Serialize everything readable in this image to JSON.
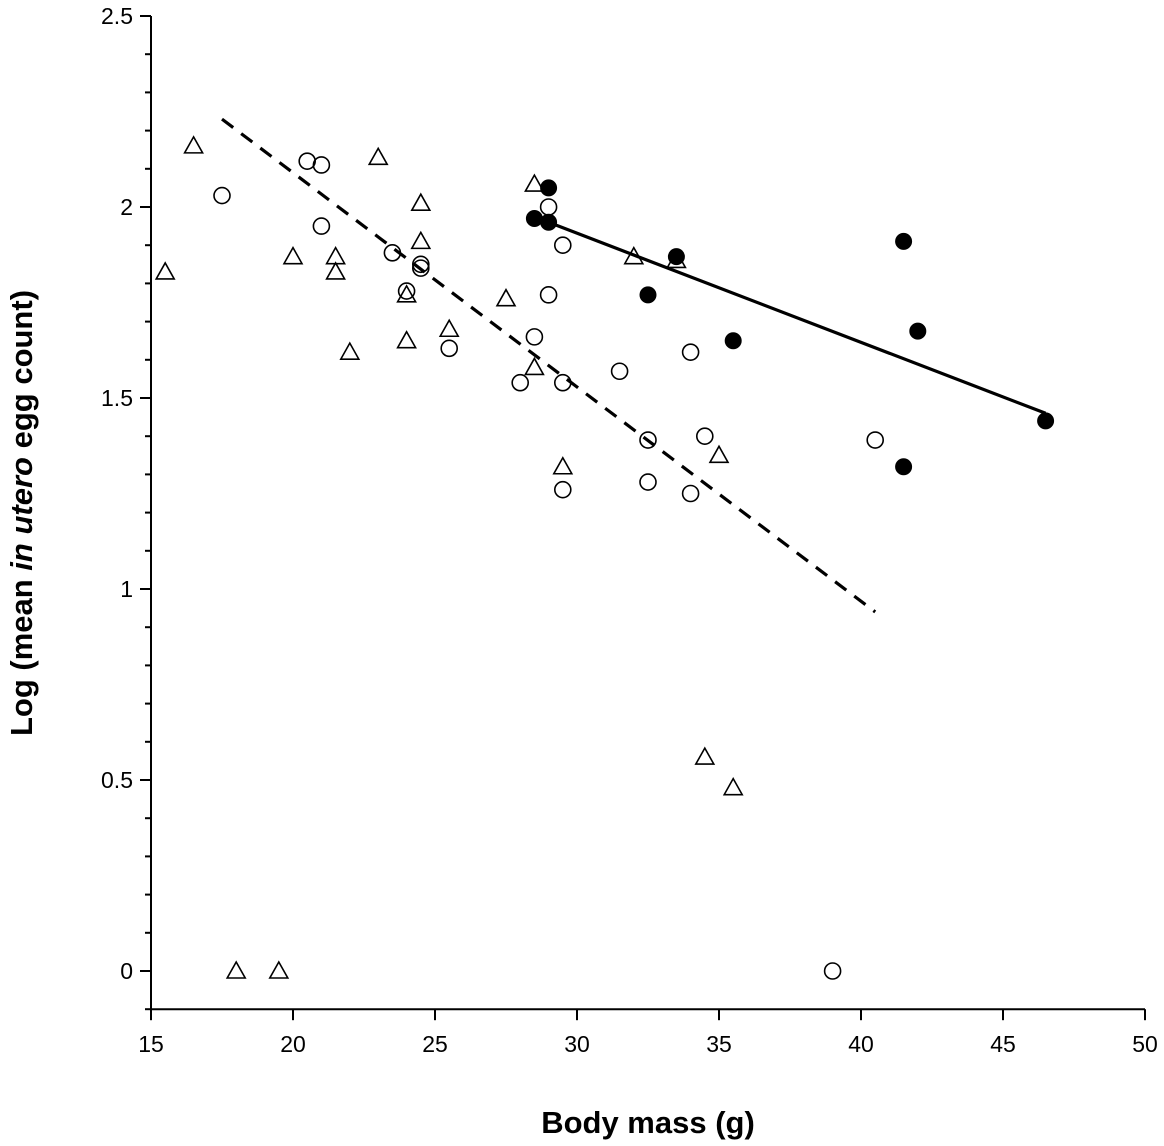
{
  "chart_data": {
    "type": "scatter",
    "xlabel": "Body mass (g)",
    "ylabel_parts": [
      "Log (mean ",
      "in utero",
      " egg count)"
    ],
    "xlim": [
      15,
      50
    ],
    "ylim": [
      -0.1,
      2.5
    ],
    "xticks": [
      15,
      20,
      25,
      30,
      35,
      40,
      45,
      50
    ],
    "yticks": [
      0,
      0.5,
      1,
      1.5,
      2,
      2.5
    ],
    "ytick_labels": [
      "0",
      "0.5",
      "1",
      "1.5",
      "2",
      "2.5"
    ],
    "y_minor_step": 0.1,
    "grid": false,
    "series": [
      {
        "marker": "open-triangle",
        "points": [
          [
            15.5,
            1.83
          ],
          [
            16.5,
            2.16
          ],
          [
            18.0,
            0
          ],
          [
            19.5,
            0
          ],
          [
            20.0,
            1.87
          ],
          [
            21.5,
            1.87
          ],
          [
            21.5,
            1.83
          ],
          [
            22.0,
            1.62
          ],
          [
            23.0,
            2.13
          ],
          [
            24.0,
            1.77
          ],
          [
            24.0,
            1.65
          ],
          [
            24.5,
            2.01
          ],
          [
            24.5,
            1.91
          ],
          [
            25.5,
            1.68
          ],
          [
            27.5,
            1.76
          ],
          [
            28.5,
            2.06
          ],
          [
            28.5,
            1.58
          ],
          [
            29.5,
            1.32
          ],
          [
            32.0,
            1.87
          ],
          [
            33.5,
            1.86
          ],
          [
            34.5,
            0.56
          ],
          [
            35.0,
            1.35
          ],
          [
            35.5,
            0.48
          ]
        ]
      },
      {
        "marker": "open-circle",
        "points": [
          [
            17.5,
            2.03
          ],
          [
            20.5,
            2.12
          ],
          [
            21.0,
            2.11
          ],
          [
            21.0,
            1.95
          ],
          [
            23.5,
            1.88
          ],
          [
            24.0,
            1.78
          ],
          [
            24.5,
            1.85
          ],
          [
            24.5,
            1.84
          ],
          [
            25.5,
            1.63
          ],
          [
            28.0,
            1.54
          ],
          [
            28.5,
            1.66
          ],
          [
            29.0,
            2.0
          ],
          [
            29.0,
            1.77
          ],
          [
            29.5,
            1.9
          ],
          [
            29.5,
            1.54
          ],
          [
            29.5,
            1.26
          ],
          [
            31.5,
            1.57
          ],
          [
            32.5,
            1.39
          ],
          [
            32.5,
            1.28
          ],
          [
            34.0,
            1.62
          ],
          [
            34.0,
            1.25
          ],
          [
            34.5,
            1.4
          ],
          [
            39.0,
            0
          ],
          [
            40.5,
            1.39
          ]
        ]
      },
      {
        "marker": "filled-circle",
        "points": [
          [
            28.5,
            1.97
          ],
          [
            29.0,
            2.05
          ],
          [
            29.0,
            1.96
          ],
          [
            32.5,
            1.77
          ],
          [
            33.5,
            1.87
          ],
          [
            35.5,
            1.65
          ],
          [
            41.5,
            1.91
          ],
          [
            41.5,
            1.32
          ],
          [
            42.0,
            1.675
          ],
          [
            46.5,
            1.44
          ]
        ]
      }
    ],
    "fit_lines": [
      {
        "style": "dashed",
        "from": [
          17.5,
          2.23
        ],
        "to": [
          40.5,
          0.94
        ]
      },
      {
        "style": "solid",
        "from": [
          29.0,
          1.96
        ],
        "to": [
          46.5,
          1.46
        ]
      }
    ],
    "colors": {
      "ink": "#000000",
      "background": "#ffffff"
    }
  }
}
